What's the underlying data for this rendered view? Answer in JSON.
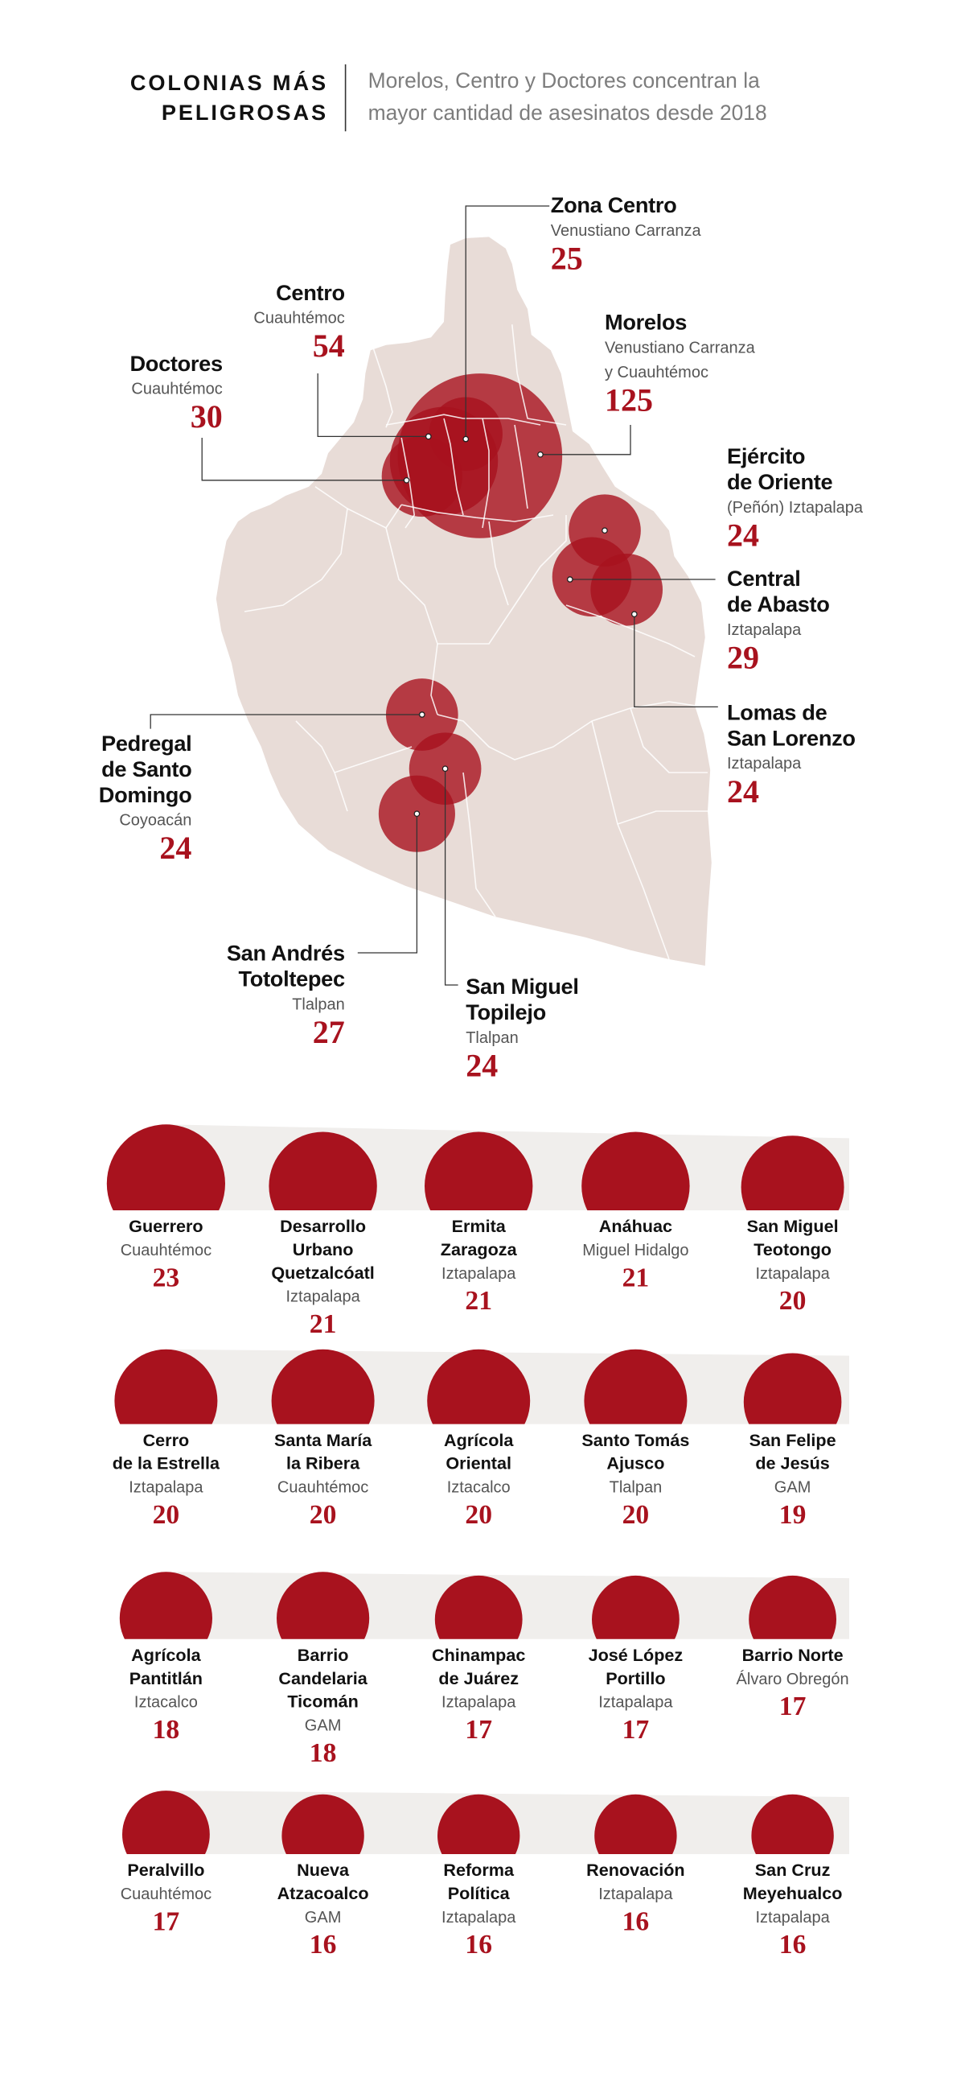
{
  "header": {
    "title_lines": [
      "COLONIAS MÁS",
      "PELIGROSAS"
    ],
    "subtitle_lines": [
      "Morelos, Centro y Doctores concentran la",
      "mayor cantidad de asesinatos desde 2018"
    ]
  },
  "colors": {
    "accent": "#a8121e",
    "map_fill": "#e8dcd7",
    "band": "#f0eeec",
    "boundary": "#ffffff"
  },
  "chart_data": [
    {
      "type": "scatter",
      "points": [
        {
          "name_lines": [
            "Zona Centro"
          ],
          "borough_lines": [
            "Venustiano Carranza"
          ],
          "value": 25
        },
        {
          "name_lines": [
            "Centro"
          ],
          "borough_lines": [
            "Cuauhtémoc"
          ],
          "value": 54
        },
        {
          "name_lines": [
            "Doctores"
          ],
          "borough_lines": [
            "Cuauhtémoc"
          ],
          "value": 30
        },
        {
          "name_lines": [
            "Morelos"
          ],
          "borough_lines": [
            "Venustiano Carranza",
            "y Cuauhtémoc"
          ],
          "value": 125
        },
        {
          "name_lines": [
            "Ejército",
            "de Oriente"
          ],
          "borough_lines": [
            "(Peñón) Iztapalapa"
          ],
          "value": 24
        },
        {
          "name_lines": [
            "Central",
            "de Abasto"
          ],
          "borough_lines": [
            "Iztapalapa"
          ],
          "value": 29
        },
        {
          "name_lines": [
            "Lomas de",
            "San Lorenzo"
          ],
          "borough_lines": [
            "Iztapalapa"
          ],
          "value": 24
        },
        {
          "name_lines": [
            "Pedregal",
            "de Santo",
            "Domingo"
          ],
          "borough_lines": [
            "Coyoacán"
          ],
          "value": 24
        },
        {
          "name_lines": [
            "San Andrés",
            "Totoltepec"
          ],
          "borough_lines": [
            "Tlalpan"
          ],
          "value": 27
        },
        {
          "name_lines": [
            "San Miguel",
            "Topilejo"
          ],
          "borough_lines": [
            "Tlalpan"
          ],
          "value": 24
        }
      ]
    },
    {
      "type": "bar",
      "items": [
        {
          "name_lines": [
            "Guerrero"
          ],
          "borough_lines": [
            "Cuauhtémoc"
          ],
          "value": 23
        },
        {
          "name_lines": [
            "Desarrollo",
            "Urbano",
            "Quetzalcóatl"
          ],
          "borough_lines": [
            "Iztapalapa"
          ],
          "value": 21
        },
        {
          "name_lines": [
            "Ermita",
            "Zaragoza"
          ],
          "borough_lines": [
            "Iztapalapa"
          ],
          "value": 21
        },
        {
          "name_lines": [
            "Anáhuac"
          ],
          "borough_lines": [
            "Miguel Hidalgo"
          ],
          "value": 21
        },
        {
          "name_lines": [
            "San Miguel",
            "Teotongo"
          ],
          "borough_lines": [
            "Iztapalapa"
          ],
          "value": 20
        },
        {
          "name_lines": [
            "Cerro",
            "de la Estrella"
          ],
          "borough_lines": [
            "Iztapalapa"
          ],
          "value": 20
        },
        {
          "name_lines": [
            "Santa María",
            "la Ribera"
          ],
          "borough_lines": [
            "Cuauhtémoc"
          ],
          "value": 20
        },
        {
          "name_lines": [
            "Agrícola",
            "Oriental"
          ],
          "borough_lines": [
            "Iztacalco"
          ],
          "value": 20
        },
        {
          "name_lines": [
            "Santo Tomás",
            "Ajusco"
          ],
          "borough_lines": [
            "Tlalpan"
          ],
          "value": 20
        },
        {
          "name_lines": [
            "San Felipe",
            "de Jesús"
          ],
          "borough_lines": [
            "GAM"
          ],
          "value": 19
        },
        {
          "name_lines": [
            "Agrícola",
            "Pantitlán"
          ],
          "borough_lines": [
            "Iztacalco"
          ],
          "value": 18
        },
        {
          "name_lines": [
            "Barrio",
            "Candelaria",
            "Ticomán"
          ],
          "borough_lines": [
            "GAM"
          ],
          "value": 18
        },
        {
          "name_lines": [
            "Chinampac",
            "de Juárez"
          ],
          "borough_lines": [
            "Iztapalapa"
          ],
          "value": 17
        },
        {
          "name_lines": [
            "José López",
            "Portillo"
          ],
          "borough_lines": [
            "Iztapalapa"
          ],
          "value": 17
        },
        {
          "name_lines": [
            "Barrio Norte"
          ],
          "borough_lines": [
            "Álvaro Obregón"
          ],
          "value": 17
        },
        {
          "name_lines": [
            "Peralvillo"
          ],
          "borough_lines": [
            "Cuauhtémoc"
          ],
          "value": 17
        },
        {
          "name_lines": [
            "Nueva",
            "Atzacoalco"
          ],
          "borough_lines": [
            "GAM"
          ],
          "value": 16
        },
        {
          "name_lines": [
            "Reforma",
            "Política"
          ],
          "borough_lines": [
            "Iztapalapa"
          ],
          "value": 16
        },
        {
          "name_lines": [
            "Renovación"
          ],
          "borough_lines": [
            "Iztapalapa"
          ],
          "value": 16
        },
        {
          "name_lines": [
            "San Cruz",
            "Meyehualco"
          ],
          "borough_lines": [
            "Iztapalapa"
          ],
          "value": 16
        }
      ]
    }
  ]
}
